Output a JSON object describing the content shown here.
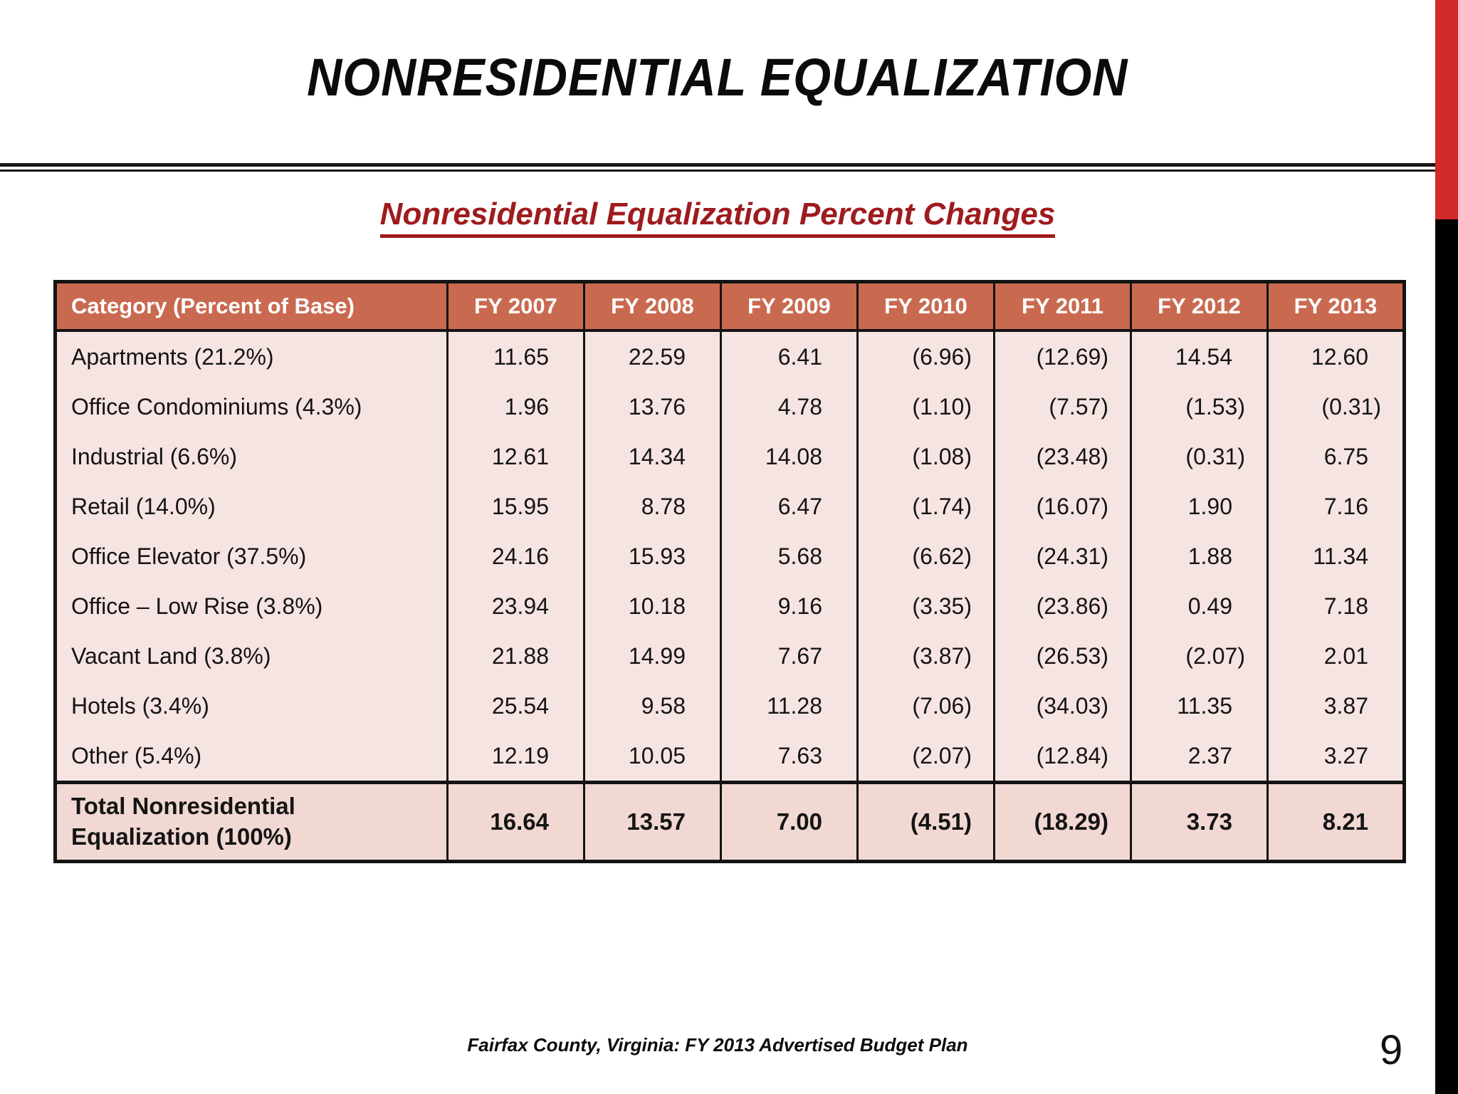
{
  "page": {
    "title": "NONRESIDENTIAL EQUALIZATION",
    "subtitle": "Nonresidential Equalization Percent Changes"
  },
  "colors": {
    "header_bg": "#C96A50",
    "body_bg": "#F6E4E2",
    "total_row_bg": "#F1D8D3",
    "subtitle_red": "#9E1B1E",
    "accent_bar_red": "#D2292B",
    "accent_bar_black": "#000000",
    "table_border": "#131313"
  },
  "table": {
    "columns": [
      "Category (Percent of Base)",
      "FY 2007",
      "FY 2008",
      "FY 2009",
      "FY 2010",
      "FY 2011",
      "FY 2012",
      "FY 2013"
    ],
    "rows": [
      {
        "label": "Apartments (21.2%)",
        "values": [
          "11.65",
          "22.59",
          "6.41",
          "(6.96)",
          "(12.69)",
          "14.54",
          "12.60"
        ]
      },
      {
        "label": "Office Condominiums (4.3%)",
        "values": [
          "1.96",
          "13.76",
          "4.78",
          "(1.10)",
          "(7.57)",
          "(1.53)",
          "(0.31)"
        ]
      },
      {
        "label": "Industrial (6.6%)",
        "values": [
          "12.61",
          "14.34",
          "14.08",
          "(1.08)",
          "(23.48)",
          "(0.31)",
          "6.75"
        ]
      },
      {
        "label": "Retail (14.0%)",
        "values": [
          "15.95",
          "8.78",
          "6.47",
          "(1.74)",
          "(16.07)",
          "1.90",
          "7.16"
        ]
      },
      {
        "label": "Office Elevator (37.5%)",
        "values": [
          "24.16",
          "15.93",
          "5.68",
          "(6.62)",
          "(24.31)",
          "1.88",
          "11.34"
        ]
      },
      {
        "label": "Office – Low Rise (3.8%)",
        "values": [
          "23.94",
          "10.18",
          "9.16",
          "(3.35)",
          "(23.86)",
          "0.49",
          "7.18"
        ]
      },
      {
        "label": "Vacant Land (3.8%)",
        "values": [
          "21.88",
          "14.99",
          "7.67",
          "(3.87)",
          "(26.53)",
          "(2.07)",
          "2.01"
        ]
      },
      {
        "label": "Hotels (3.4%)",
        "values": [
          "25.54",
          "9.58",
          "11.28",
          "(7.06)",
          "(34.03)",
          "11.35",
          "3.87"
        ]
      },
      {
        "label": "Other (5.4%)",
        "values": [
          "12.19",
          "10.05",
          "7.63",
          "(2.07)",
          "(12.84)",
          "2.37",
          "3.27"
        ]
      }
    ],
    "total": {
      "label": "Total Nonresidential Equalization (100%)",
      "values": [
        "16.64",
        "13.57",
        "7.00",
        "(4.51)",
        "(18.29)",
        "3.73",
        "8.21"
      ]
    }
  },
  "footer": {
    "citation": "Fairfax County, Virginia: FY 2013 Advertised Budget Plan",
    "page_number": "9"
  }
}
